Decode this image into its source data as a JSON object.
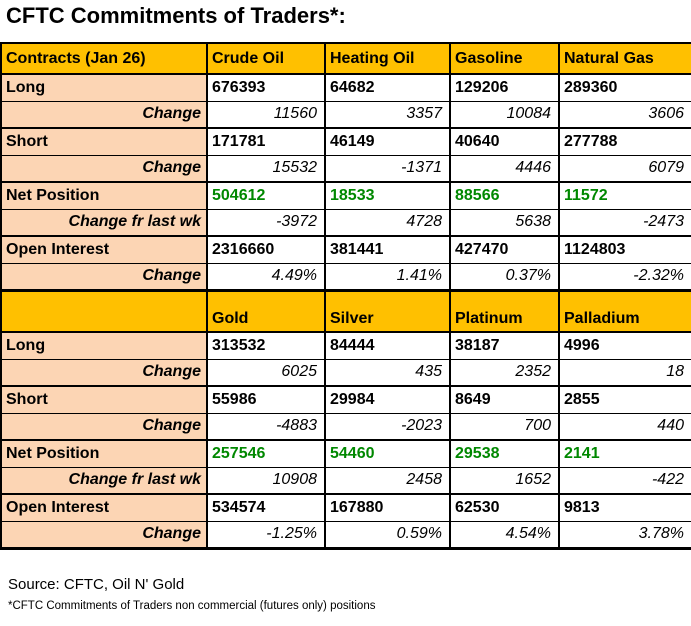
{
  "title": "CFTC Commitments of Traders*:",
  "footer": {
    "source": "Source: CFTC, Oil N' Gold",
    "note": "*CFTC Commitments of Traders non commercial (futures only) positions"
  },
  "colors": {
    "header_bg": "#FFC000",
    "label_bg": "#FCD5B4",
    "net_green": "#008800",
    "border": "#000000"
  },
  "chart_data": {
    "type": "table",
    "title": "CFTC Commitments of Traders (non commercial, futures only), Jan 26",
    "sections": [
      {
        "header": [
          "Contracts (Jan 26)",
          "Crude Oil",
          "Heating Oil",
          "Gasoline",
          "Natural Gas"
        ],
        "rows": [
          {
            "label": "Long",
            "type": "main",
            "values": [
              "676393",
              "64682",
              "129206",
              "289360"
            ]
          },
          {
            "label": "Change",
            "type": "change",
            "values": [
              "11560",
              "3357",
              "10084",
              "3606"
            ]
          },
          {
            "label": "Short",
            "type": "main",
            "values": [
              "171781",
              "46149",
              "40640",
              "277788"
            ]
          },
          {
            "label": "Change",
            "type": "change",
            "values": [
              "15532",
              "-1371",
              "4446",
              "6079"
            ]
          },
          {
            "label": "Net Position",
            "type": "net",
            "values": [
              "504612",
              "18533",
              "88566",
              "11572"
            ]
          },
          {
            "label": "Change fr last wk",
            "type": "change",
            "values": [
              "-3972",
              "4728",
              "5638",
              "-2473"
            ]
          },
          {
            "label": "Open Interest",
            "type": "main",
            "values": [
              "2316660",
              "381441",
              "427470",
              "1124803"
            ]
          },
          {
            "label": "Change",
            "type": "change",
            "values": [
              "4.49%",
              "1.41%",
              "0.37%",
              "-2.32%"
            ]
          }
        ]
      },
      {
        "header": [
          "",
          "Gold",
          "Silver",
          "Platinum",
          "Palladium"
        ],
        "rows": [
          {
            "label": "Long",
            "type": "main",
            "values": [
              "313532",
              "84444",
              "38187",
              "4996"
            ]
          },
          {
            "label": "Change",
            "type": "change",
            "values": [
              "6025",
              "435",
              "2352",
              "18"
            ]
          },
          {
            "label": "Short",
            "type": "main",
            "values": [
              "55986",
              "29984",
              "8649",
              "2855"
            ]
          },
          {
            "label": "Change",
            "type": "change",
            "values": [
              "-4883",
              "-2023",
              "700",
              "440"
            ]
          },
          {
            "label": "Net Position",
            "type": "net",
            "values": [
              "257546",
              "54460",
              "29538",
              "2141"
            ]
          },
          {
            "label": "Change fr last wk",
            "type": "change",
            "values": [
              "10908",
              "2458",
              "1652",
              "-422"
            ]
          },
          {
            "label": "Open Interest",
            "type": "main",
            "values": [
              "534574",
              "167880",
              "62530",
              "9813"
            ]
          },
          {
            "label": "Change",
            "type": "change",
            "values": [
              "-1.25%",
              "0.59%",
              "4.54%",
              "3.78%"
            ]
          }
        ]
      }
    ]
  }
}
